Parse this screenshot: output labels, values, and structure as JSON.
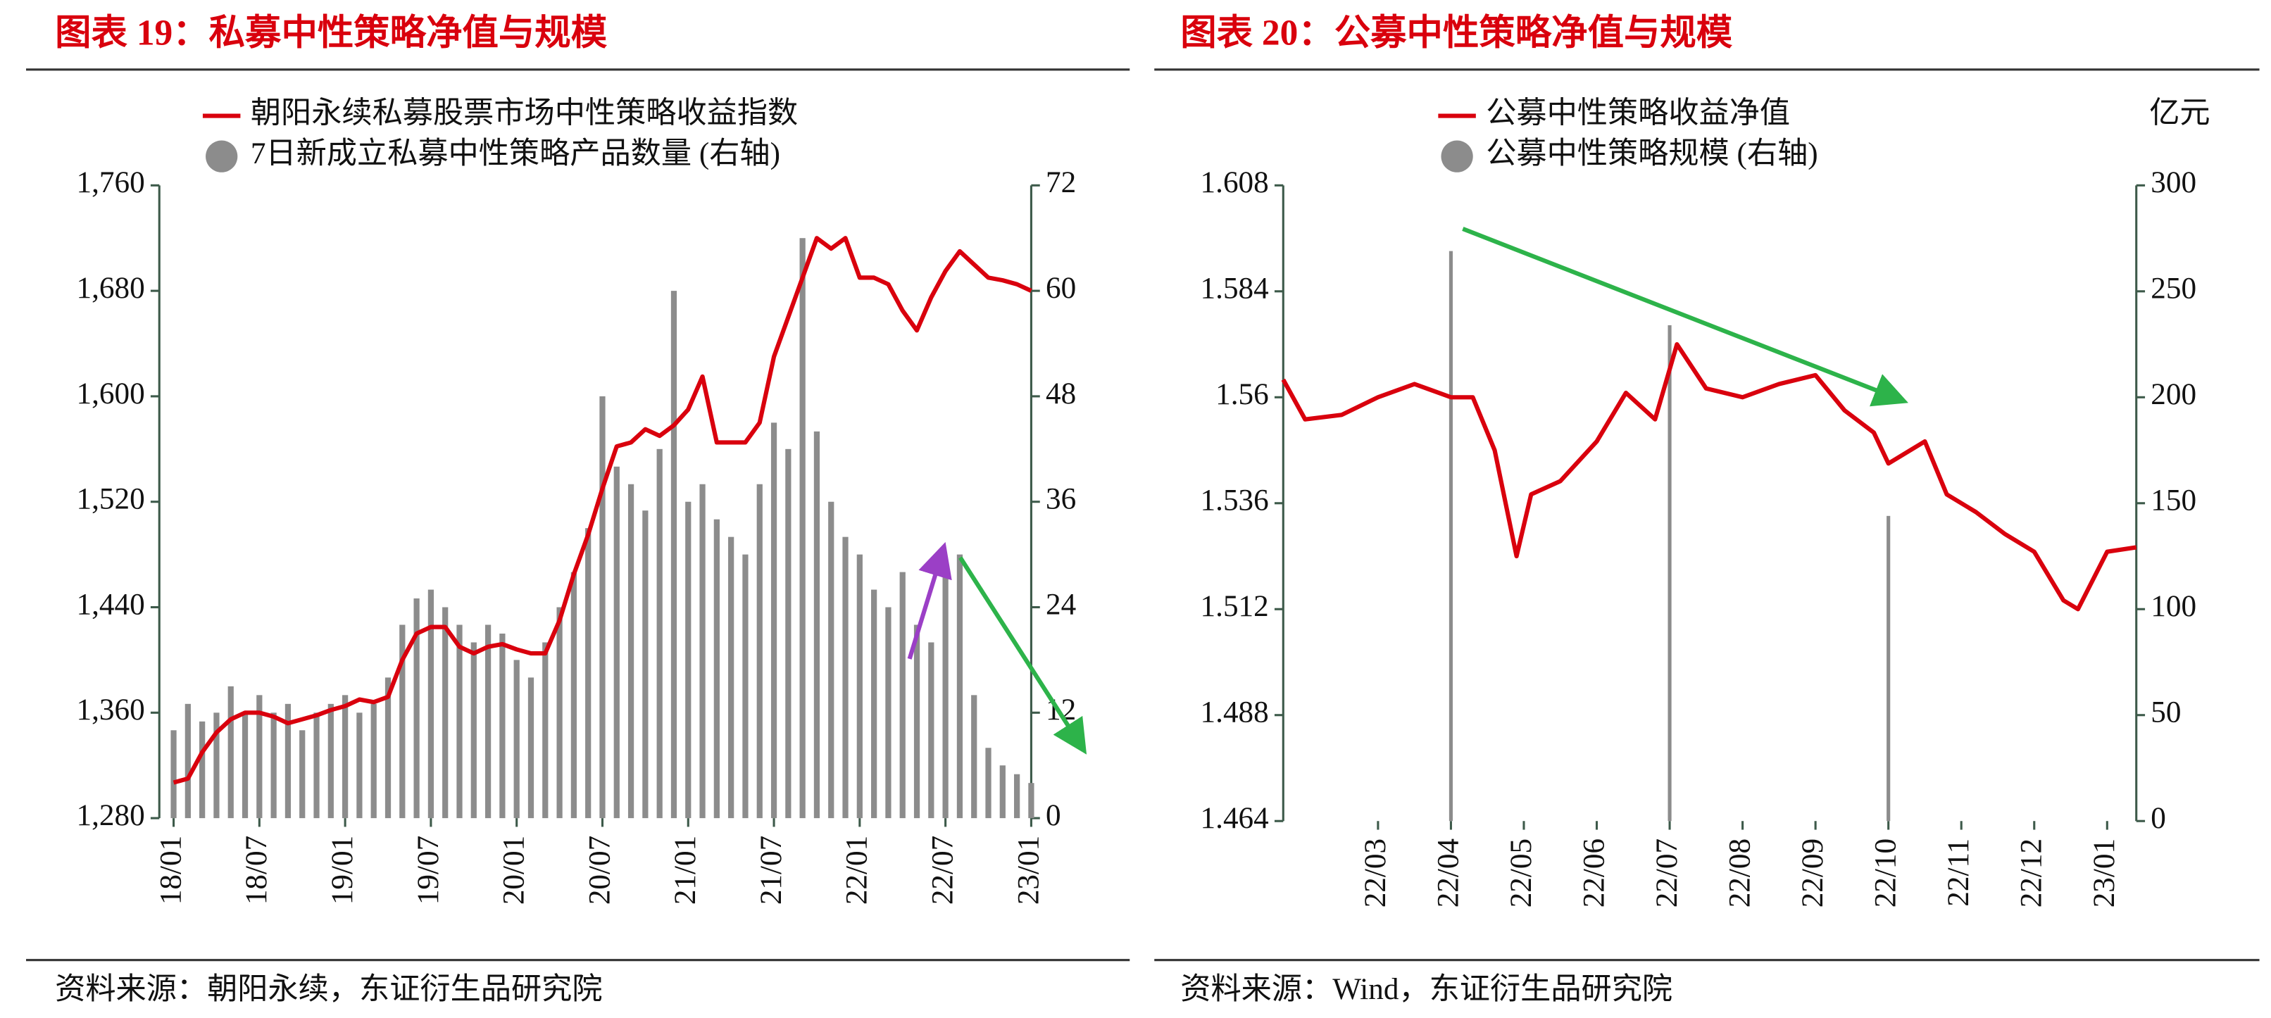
{
  "chart_data": [
    {
      "type": "line-bar",
      "title": "图表 19：私募中性策略净值与规模",
      "source": "资料来源：朝阳永续，东证衍生品研究院",
      "x": [
        0,
        1,
        2,
        3,
        4,
        5,
        6,
        7,
        8,
        9,
        10,
        11,
        12,
        13,
        14,
        15,
        16,
        17,
        18,
        19,
        20,
        21,
        22,
        23,
        24,
        25,
        26,
        27,
        28,
        29,
        30,
        31,
        32,
        33,
        34,
        35,
        36,
        37,
        38,
        39,
        40,
        41,
        42,
        43,
        44,
        45,
        46,
        47,
        48,
        49,
        50,
        51,
        52,
        53,
        54,
        55,
        56,
        57,
        58,
        59,
        60
      ],
      "xlim": [
        -1,
        60
      ],
      "xticks": [
        {
          "value": 0,
          "label": "18/01"
        },
        {
          "value": 6,
          "label": "18/07"
        },
        {
          "value": 12,
          "label": "19/01"
        },
        {
          "value": 18,
          "label": "19/07"
        },
        {
          "value": 24,
          "label": "20/01"
        },
        {
          "value": 30,
          "label": "20/07"
        },
        {
          "value": 36,
          "label": "21/01"
        },
        {
          "value": 42,
          "label": "21/07"
        },
        {
          "value": 48,
          "label": "22/01"
        },
        {
          "value": 54,
          "label": "22/07"
        },
        {
          "value": 60,
          "label": "23/01"
        }
      ],
      "ylim": [
        1280,
        1760
      ],
      "yticks": [
        {
          "value": 1280,
          "label": "1,280"
        },
        {
          "value": 1360,
          "label": "1,360"
        },
        {
          "value": 1440,
          "label": "1,440"
        },
        {
          "value": 1520,
          "label": "1,520"
        },
        {
          "value": 1600,
          "label": "1,600"
        },
        {
          "value": 1680,
          "label": "1,680"
        },
        {
          "value": 1760,
          "label": "1,760"
        }
      ],
      "y2lim": [
        0,
        72
      ],
      "y2ticks": [
        0,
        12,
        24,
        36,
        48,
        60,
        72
      ],
      "series": [
        {
          "name": "朝阳永续私募股票市场中性策略收益指数",
          "kind": "line",
          "color": "#d9000d",
          "values": [
            1307,
            1310,
            1330,
            1345,
            1355,
            1360,
            1360,
            1357,
            1352,
            1355,
            1358,
            1362,
            1365,
            1370,
            1368,
            1372,
            1400,
            1420,
            1425,
            1425,
            1410,
            1405,
            1410,
            1412,
            1408,
            1405,
            1405,
            1430,
            1465,
            1495,
            1530,
            1562,
            1565,
            1575,
            1570,
            1578,
            1590,
            1615,
            1565,
            1565,
            1565,
            1580,
            1630,
            1660,
            1690,
            1720,
            1712,
            1720,
            1690,
            1690,
            1685,
            1665,
            1650,
            1675,
            1695,
            1710,
            1700,
            1690,
            1688,
            1685,
            1680
          ]
        },
        {
          "name": "7日新成立私募中性策略产品数量 (右轴)",
          "kind": "bar",
          "axis": "y2",
          "color": "#8c8c8c",
          "values": [
            10,
            13,
            11,
            12,
            15,
            12,
            14,
            12,
            13,
            10,
            12,
            13,
            14,
            12,
            13,
            16,
            22,
            25,
            26,
            24,
            22,
            20,
            22,
            21,
            18,
            16,
            20,
            24,
            28,
            33,
            48,
            40,
            38,
            35,
            42,
            60,
            36,
            38,
            34,
            32,
            30,
            38,
            45,
            42,
            66,
            44,
            36,
            32,
            30,
            26,
            24,
            28,
            22,
            20,
            28,
            30,
            14,
            8,
            6,
            5,
            4
          ]
        }
      ]
    },
    {
      "type": "line-bar",
      "title": "图表 20：公募中性策略净值与规模",
      "source": "资料来源：Wind，东证衍生品研究院",
      "y2_label": "亿元",
      "xlim": [
        0.7,
        12.4
      ],
      "xticks": [
        {
          "value": 2,
          "label": "22/03"
        },
        {
          "value": 3,
          "label": "22/04"
        },
        {
          "value": 4,
          "label": "22/05"
        },
        {
          "value": 5,
          "label": "22/06"
        },
        {
          "value": 6,
          "label": "22/07"
        },
        {
          "value": 7,
          "label": "22/08"
        },
        {
          "value": 8,
          "label": "22/09"
        },
        {
          "value": 9,
          "label": "22/10"
        },
        {
          "value": 10,
          "label": "22/11"
        },
        {
          "value": 11,
          "label": "22/12"
        },
        {
          "value": 12,
          "label": "23/01"
        }
      ],
      "ylim": [
        1.464,
        1.608
      ],
      "yticks": [
        1.464,
        1.488,
        1.512,
        1.536,
        1.56,
        1.584,
        1.608
      ],
      "y2lim": [
        0,
        300
      ],
      "y2ticks": [
        0,
        50,
        100,
        150,
        200,
        250,
        300
      ],
      "series": [
        {
          "name": "公募中性策略收益净值",
          "kind": "line",
          "color": "#d9000d",
          "x": [
            0.7,
            1,
            1.5,
            2,
            2.5,
            3,
            3.3,
            3.6,
            3.9,
            4.1,
            4.5,
            5,
            5.4,
            5.8,
            6.1,
            6.5,
            7,
            7.5,
            8,
            8.4,
            8.8,
            9,
            9.5,
            9.8,
            10.2,
            10.6,
            11,
            11.4,
            11.6,
            12,
            12.4
          ],
          "values": [
            1.564,
            1.555,
            1.556,
            1.56,
            1.563,
            1.56,
            1.56,
            1.548,
            1.524,
            1.538,
            1.541,
            1.55,
            1.561,
            1.555,
            1.572,
            1.562,
            1.56,
            1.563,
            1.565,
            1.557,
            1.552,
            1.545,
            1.55,
            1.538,
            1.534,
            1.529,
            1.525,
            1.514,
            1.512,
            1.525,
            1.526
          ]
        },
        {
          "name": "公募中性策略规模 (右轴)",
          "kind": "bar",
          "axis": "y2",
          "color": "#8c8c8c",
          "x": [
            3,
            6,
            9
          ],
          "values": [
            269,
            234,
            144
          ]
        }
      ]
    }
  ]
}
